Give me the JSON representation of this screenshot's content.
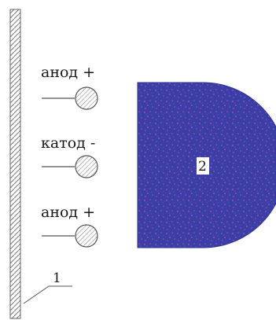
{
  "electrodes": [
    {
      "label": "анод +",
      "polarity": "anode"
    },
    {
      "label": "катод -",
      "polarity": "cathode"
    },
    {
      "label": "анод +",
      "polarity": "anode"
    }
  ],
  "wall": {
    "number": "1"
  },
  "part": {
    "number": "2"
  },
  "colors": {
    "part_fill": "#3a3fa6",
    "part_speckle": "#c44bb8",
    "line": "#555555",
    "electrode_fill": "#d8d8d8"
  }
}
